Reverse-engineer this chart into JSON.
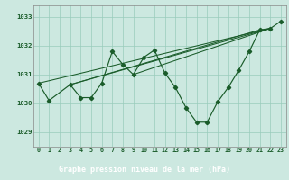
{
  "bg_color": "#cce8e0",
  "plot_bg_color": "#cce8e0",
  "bottom_bar_color": "#2d6e3e",
  "grid_color": "#99ccbb",
  "line_color": "#1a5c2a",
  "title": "Graphe pression niveau de la mer (hPa)",
  "hours": [
    0,
    1,
    2,
    3,
    4,
    5,
    6,
    7,
    8,
    9,
    10,
    11,
    12,
    13,
    14,
    15,
    16,
    17,
    18,
    19,
    20,
    21,
    22,
    23
  ],
  "yticks": [
    1029,
    1030,
    1031,
    1032,
    1033
  ],
  "ylim": [
    1028.5,
    1033.4
  ],
  "xlim": [
    -0.5,
    23.5
  ],
  "main_x": [
    0,
    1,
    3,
    4,
    5,
    6,
    7,
    8,
    9,
    10,
    11,
    12,
    13,
    14,
    15,
    16,
    17,
    18,
    19,
    20,
    21,
    22,
    23
  ],
  "main_y": [
    1030.7,
    1030.1,
    1030.65,
    1030.2,
    1030.2,
    1030.7,
    1031.8,
    1031.35,
    1031.0,
    1031.6,
    1031.85,
    1031.05,
    1030.55,
    1029.85,
    1029.35,
    1029.35,
    1030.05,
    1030.55,
    1031.15,
    1031.8,
    1032.55,
    1032.6,
    1032.85
  ],
  "straight_lines": [
    {
      "x": [
        0,
        22
      ],
      "y": [
        1030.7,
        1032.6
      ]
    },
    {
      "x": [
        3,
        22
      ],
      "y": [
        1030.65,
        1032.6
      ]
    },
    {
      "x": [
        3,
        21
      ],
      "y": [
        1030.65,
        1032.55
      ]
    },
    {
      "x": [
        9,
        22
      ],
      "y": [
        1031.0,
        1032.6
      ]
    }
  ]
}
